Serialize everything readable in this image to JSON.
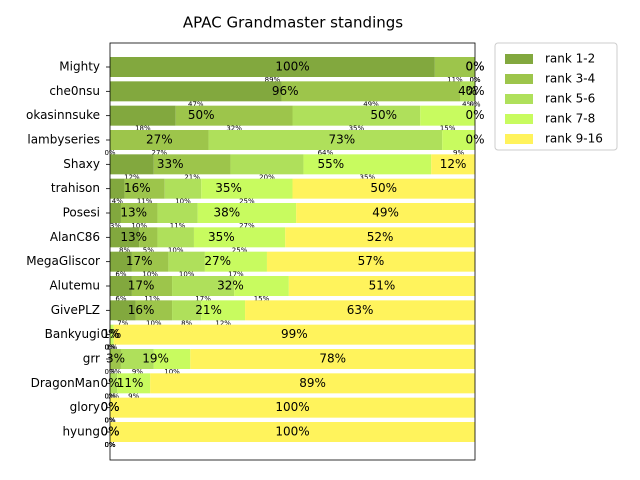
{
  "chart_data": {
    "type": "stacked_barh",
    "title": "APAC Grandmaster standings",
    "categories": [
      "Mighty",
      "che0nsu",
      "okasinnsuke",
      "lambyseries",
      "Shaxy",
      "trahison",
      "Posesi",
      "AlanC86",
      "MegaGliscor",
      "Alutemu",
      "GivePLZ",
      "Bankyugi",
      "grr",
      "DragonMan",
      "glory",
      "hyung"
    ],
    "xlim": [
      0,
      100
    ],
    "legend": "outside-upper-right",
    "series": [
      {
        "name": "rank 1-2",
        "color": "#82a83e",
        "values": [
          89,
          47,
          18,
          0,
          12,
          4,
          3,
          8,
          6,
          6,
          7,
          0,
          0,
          0,
          0,
          0
        ],
        "value_labels": [
          "89%",
          "47%",
          "18%",
          "0%",
          "12%",
          "4%",
          "3%",
          "8%",
          "6%",
          "6%",
          "7%",
          "0%",
          "0%",
          "0%",
          "0%",
          "0%"
        ]
      },
      {
        "name": "rank 3-4",
        "color": "#9dc54b",
        "values": [
          11,
          49,
          32,
          27,
          21,
          11,
          10,
          5,
          10,
          11,
          10,
          0,
          3,
          0,
          0,
          0
        ],
        "value_labels": [
          "11%",
          "49%",
          "32%",
          "27%",
          "21%",
          "11%",
          "10%",
          "5%",
          "10%",
          "11%",
          "10%",
          "0%",
          "3%",
          "0%",
          "0%",
          "0%"
        ]
      },
      {
        "name": "rank 5-6",
        "color": "#afe05b",
        "values": [
          0,
          4,
          35,
          64,
          20,
          10,
          11,
          10,
          10,
          17,
          8,
          0,
          9,
          2,
          0,
          0
        ],
        "value_labels": [
          "0%",
          "4%",
          "35%",
          "64%",
          "20%",
          "10%",
          "11%",
          "10%",
          "10%",
          "17%",
          "8%",
          "0%",
          "9%",
          "2%",
          "0%",
          "0%"
        ]
      },
      {
        "name": "rank 7-8",
        "color": "#c8fb5f",
        "values": [
          0,
          0,
          15,
          9,
          35,
          25,
          27,
          25,
          17,
          15,
          12,
          1,
          10,
          9,
          0,
          0
        ],
        "value_labels": [
          "0%",
          "0%",
          "15%",
          "9%",
          "35%",
          "25%",
          "27%",
          "25%",
          "17%",
          "15%",
          "12%",
          "1%",
          "10%",
          "9%",
          "0%",
          "0%"
        ]
      },
      {
        "name": "rank 9-16",
        "color": "#fff35c",
        "values": [
          0,
          0,
          0,
          0,
          12,
          50,
          49,
          52,
          57,
          51,
          63,
          99,
          78,
          89,
          100,
          100
        ],
        "value_labels": [
          "0%",
          "0%",
          "0%",
          "0%",
          "12%",
          "50%",
          "49%",
          "52%",
          "57%",
          "51%",
          "63%",
          "99%",
          "78%",
          "89%",
          "100%",
          "100%"
        ]
      }
    ],
    "group_labels": [
      [
        "100%",
        "0%"
      ],
      [
        "96%",
        "4%"
      ],
      [
        "50%",
        "50%"
      ],
      [
        "27%",
        "73%"
      ],
      [
        "33%",
        "55%"
      ],
      [
        "16%",
        "35%"
      ],
      [
        "13%",
        "38%"
      ],
      [
        "13%",
        "35%"
      ],
      [
        "17%",
        "27%"
      ],
      [
        "17%",
        "32%"
      ],
      [
        "16%",
        "21%"
      ],
      [
        "0%",
        "1%"
      ],
      [
        "3%",
        "19%"
      ],
      [
        "0%",
        "11%"
      ],
      [
        "0%",
        "0%"
      ],
      [
        "0%",
        "0%"
      ]
    ]
  }
}
